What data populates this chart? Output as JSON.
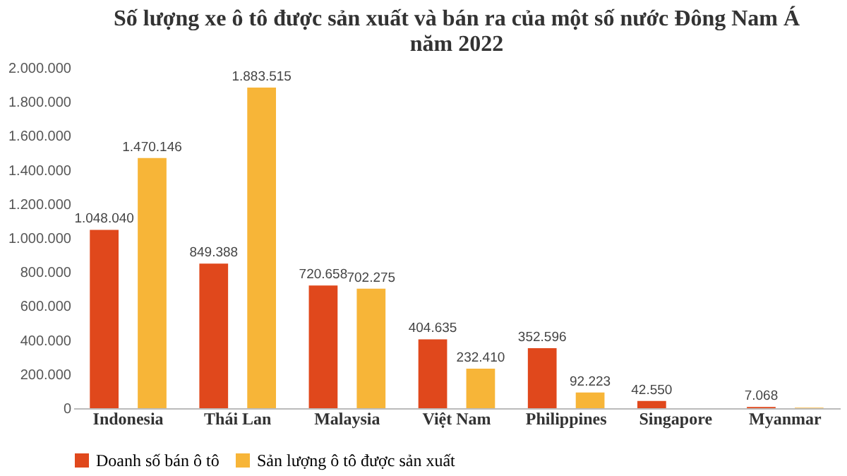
{
  "chart_data": {
    "type": "bar",
    "title": "Số lượng xe ô tô được sản xuất và bán ra của một số nước Đông Nam Á năm 2022",
    "categories": [
      "Indonesia",
      "Thái Lan",
      "Malaysia",
      "Việt Nam",
      "Philippines",
      "Singapore",
      "Myanmar"
    ],
    "series": [
      {
        "name": "Doanh số bán ô tô",
        "color": "#e0481c",
        "values": [
          1048040,
          849388,
          720658,
          404635,
          352596,
          42550,
          7068
        ],
        "value_labels": [
          "1.048.040",
          "849.388",
          "720.658",
          "404.635",
          "352.596",
          "42.550",
          "7.068"
        ]
      },
      {
        "name": "Sản lượng ô tô được sản xuất",
        "color": "#f7b538",
        "values": [
          1470146,
          1883515,
          702275,
          232410,
          92223,
          null,
          3100
        ],
        "value_labels": [
          "1.470.146",
          "1.883.515",
          "702.275",
          "232.410",
          "92.223",
          null,
          null
        ]
      }
    ],
    "ylim": [
      0,
      2000000
    ],
    "yticks": [
      {
        "value": 0,
        "label": "0"
      },
      {
        "value": 200000,
        "label": "200.000"
      },
      {
        "value": 400000,
        "label": "400.000"
      },
      {
        "value": 600000,
        "label": "600.000"
      },
      {
        "value": 800000,
        "label": "800.000"
      },
      {
        "value": 1000000,
        "label": "1.000.000"
      },
      {
        "value": 1200000,
        "label": "1.200.000"
      },
      {
        "value": 1400000,
        "label": "1.400.000"
      },
      {
        "value": 1600000,
        "label": "1.600.000"
      },
      {
        "value": 1800000,
        "label": "1.800.000"
      },
      {
        "value": 2000000,
        "label": "2.000.000"
      }
    ],
    "grid": false,
    "legend": "bottom"
  }
}
